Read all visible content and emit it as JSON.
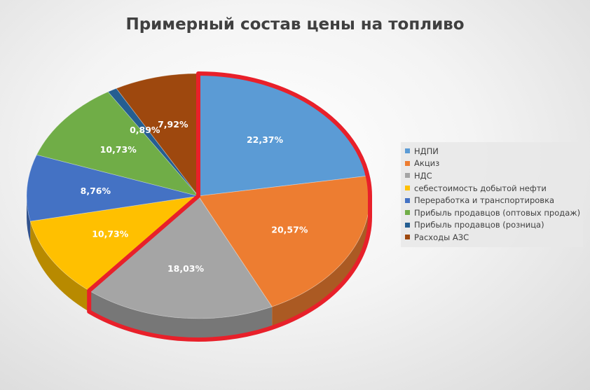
{
  "chart_data": {
    "type": "pie",
    "title": "Примерный состав цены на топливо",
    "slices": [
      {
        "name": "НДПИ",
        "value": 22.37,
        "label": "22,37%",
        "color": "#5b9bd5"
      },
      {
        "name": "Акциз",
        "value": 20.57,
        "label": "20,57%",
        "color": "#ed7d31"
      },
      {
        "name": "НДС",
        "value": 18.03,
        "label": "18,03%",
        "color": "#a5a5a5"
      },
      {
        "name": "себестоимость добытой нефти",
        "value": 10.73,
        "label": "10,73%",
        "color": "#ffc000"
      },
      {
        "name": "Переработка и транспортировка",
        "value": 8.76,
        "label": "8,76%",
        "color": "#4472c4"
      },
      {
        "name": "Прибыль продавцов  (оптовых продаж)",
        "value": 10.73,
        "label": "10,73%",
        "color": "#70ad47"
      },
      {
        "name": "Прибыль продавцов (розница)",
        "value": 0.89,
        "label": "0,89%",
        "color": "#255e91"
      },
      {
        "name": "Расходы АЗС",
        "value": 7.92,
        "label": "7,92%",
        "color": "#9e480e"
      }
    ],
    "legend_position": "right",
    "highlight_color": "#e8202a"
  }
}
